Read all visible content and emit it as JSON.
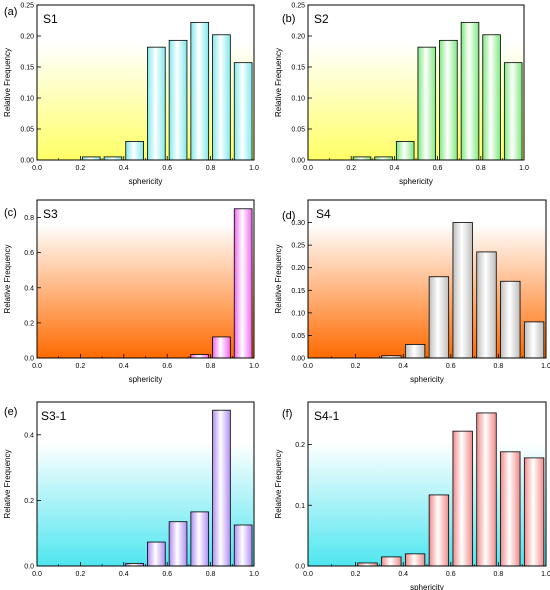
{
  "colors": {
    "cyan": "#7fe8ec",
    "green": "#7ee87e",
    "magenta": "#ee66ee",
    "gray": "#bdbdbd",
    "purple": "#b08cf0",
    "red": "#f08a8a",
    "grad_yellow": "#ffff66",
    "grad_orange": "#ff6a00",
    "grad_cyan": "#4fe6f0"
  },
  "chart_data": [
    {
      "type": "bar",
      "tag": "(a)",
      "name": "S1",
      "x": [
        0.25,
        0.35,
        0.45,
        0.55,
        0.65,
        0.75,
        0.85,
        0.95
      ],
      "values": [
        0.005,
        0.005,
        0.03,
        0.182,
        0.193,
        0.222,
        0.202,
        0.157
      ],
      "xlim": [
        0,
        1
      ],
      "ylim": [
        0,
        0.25
      ],
      "xticks": [
        "0.0",
        "0.2",
        "0.4",
        "0.6",
        "0.8",
        "1.0"
      ],
      "yticks": [
        "0.00",
        "0.05",
        "0.10",
        "0.15",
        "0.20",
        "0.25"
      ],
      "xlabel": "sphericity",
      "ylabel": "Relative Frequency",
      "fill": "cyan",
      "bg": "grad_yellow"
    },
    {
      "type": "bar",
      "tag": "(b)",
      "name": "S2",
      "x": [
        0.25,
        0.35,
        0.45,
        0.55,
        0.65,
        0.75,
        0.85,
        0.95
      ],
      "values": [
        0.005,
        0.005,
        0.03,
        0.182,
        0.193,
        0.222,
        0.202,
        0.157
      ],
      "xlim": [
        0,
        1
      ],
      "ylim": [
        0,
        0.25
      ],
      "xticks": [
        "0.0",
        "0.2",
        "0.4",
        "0.6",
        "0.8",
        "1.0"
      ],
      "yticks": [
        "0.00",
        "0.05",
        "0.10",
        "0.15",
        "0.20",
        "0.25"
      ],
      "xlabel": "sphericity",
      "ylabel": "Relative Frequency",
      "fill": "green",
      "bg": "grad_yellow"
    },
    {
      "type": "bar",
      "tag": "(c)",
      "name": "S3",
      "x": [
        0.75,
        0.85,
        0.95
      ],
      "values": [
        0.02,
        0.12,
        0.85
      ],
      "xlim": [
        0,
        1
      ],
      "ylim": [
        0,
        0.9
      ],
      "xticks": [
        "0.0",
        "0.2",
        "0.4",
        "0.6",
        "0.8",
        "1.0"
      ],
      "yticks": [
        "0.0",
        "0.2",
        "0.4",
        "0.6",
        "0.8"
      ],
      "xlabel": "sphericity",
      "ylabel": "Relative Frequency",
      "fill": "magenta",
      "bg": "grad_orange"
    },
    {
      "type": "bar",
      "tag": "(d)",
      "name": "S4",
      "x": [
        0.35,
        0.45,
        0.55,
        0.65,
        0.75,
        0.85,
        0.95
      ],
      "values": [
        0.005,
        0.03,
        0.18,
        0.3,
        0.235,
        0.17,
        0.08
      ],
      "xlim": [
        0,
        1
      ],
      "ylim": [
        0,
        0.35
      ],
      "xticks": [
        "0.0",
        "0.2",
        "0.4",
        "0.6",
        "0.8",
        "1.0"
      ],
      "yticks": [
        "0.00",
        "0.05",
        "0.10",
        "0.15",
        "0.20",
        "0.25",
        "0.30"
      ],
      "xlabel": "sphericity",
      "ylabel": "Relative Frequency",
      "fill": "gray",
      "bg": "grad_orange"
    },
    {
      "type": "bar",
      "tag": "(e)",
      "name": "S3-1",
      "x": [
        0.45,
        0.55,
        0.65,
        0.75,
        0.85,
        0.95
      ],
      "values": [
        0.008,
        0.073,
        0.135,
        0.165,
        0.475,
        0.125
      ],
      "xlim": [
        0,
        1
      ],
      "ylim": [
        0,
        0.5
      ],
      "xticks": [
        "0.0",
        "0.2",
        "0.4",
        "0.6",
        "0.8",
        "1.0"
      ],
      "yticks": [
        "0.0",
        "0.2",
        "0.4"
      ],
      "xlabel": "",
      "ylabel": "Relative Frequency",
      "fill": "purple",
      "bg": "grad_cyan"
    },
    {
      "type": "bar",
      "tag": "(f)",
      "name": "S4-1",
      "x": [
        0.25,
        0.35,
        0.45,
        0.55,
        0.65,
        0.75,
        0.85,
        0.95
      ],
      "values": [
        0.005,
        0.015,
        0.02,
        0.117,
        0.222,
        0.252,
        0.188,
        0.178
      ],
      "xlim": [
        0,
        1
      ],
      "ylim": [
        0,
        0.27
      ],
      "xticks": [
        "0.0",
        "0.2",
        "0.4",
        "0.6",
        "0.8",
        "1.0"
      ],
      "yticks": [
        "0.0",
        "0.1",
        "0.2"
      ],
      "xlabel": "sphericity",
      "ylabel": "Relative Frequency",
      "fill": "red",
      "bg": "grad_cyan"
    }
  ]
}
